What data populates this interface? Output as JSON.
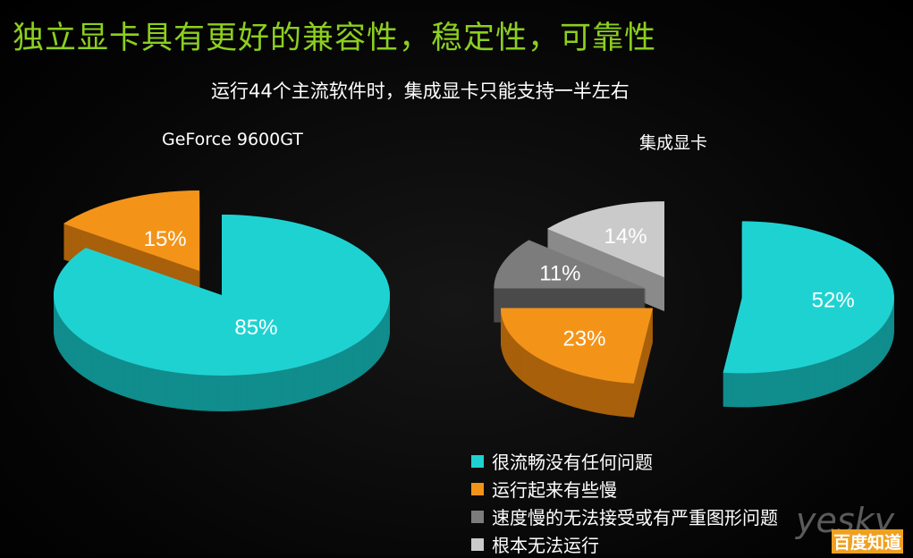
{
  "title": "独立显卡具有更好的兼容性，稳定性，可靠性",
  "subtitle": "运行44个主流软件时，集成显卡只能支持一半左右",
  "colors": {
    "teal": "#1fd2d2",
    "orange": "#f39419",
    "grey": "#7c7c7c",
    "light_grey": "#cacaca",
    "title_green": "#8ccf1e"
  },
  "chart_data": [
    {
      "type": "pie",
      "title": "GeForce 9600GT",
      "categories": [
        "很流畅没有任何问题",
        "运行起来有些慢"
      ],
      "values": [
        85,
        15
      ],
      "labels": [
        "85%",
        "15%"
      ]
    },
    {
      "type": "pie",
      "title": "集成显卡",
      "categories": [
        "很流畅没有任何问题",
        "运行起来有些慢",
        "速度慢的无法接受或有严重图形问题",
        "根本无法运行"
      ],
      "values": [
        52,
        23,
        11,
        14
      ],
      "labels": [
        "52%",
        "23%",
        "11%",
        "14%"
      ]
    }
  ],
  "legend": {
    "placement": "bottom-right",
    "items": [
      {
        "label": "很流畅没有任何问题",
        "color": "#1fd2d2"
      },
      {
        "label": "运行起来有些慢",
        "color": "#f39419"
      },
      {
        "label": "速度慢的无法接受或有严重图形问题",
        "color": "#7c7c7c"
      },
      {
        "label": "根本无法运行",
        "color": "#cacaca"
      }
    ]
  },
  "watermark": {
    "brand": "yesky",
    "badge": "百度知道"
  }
}
